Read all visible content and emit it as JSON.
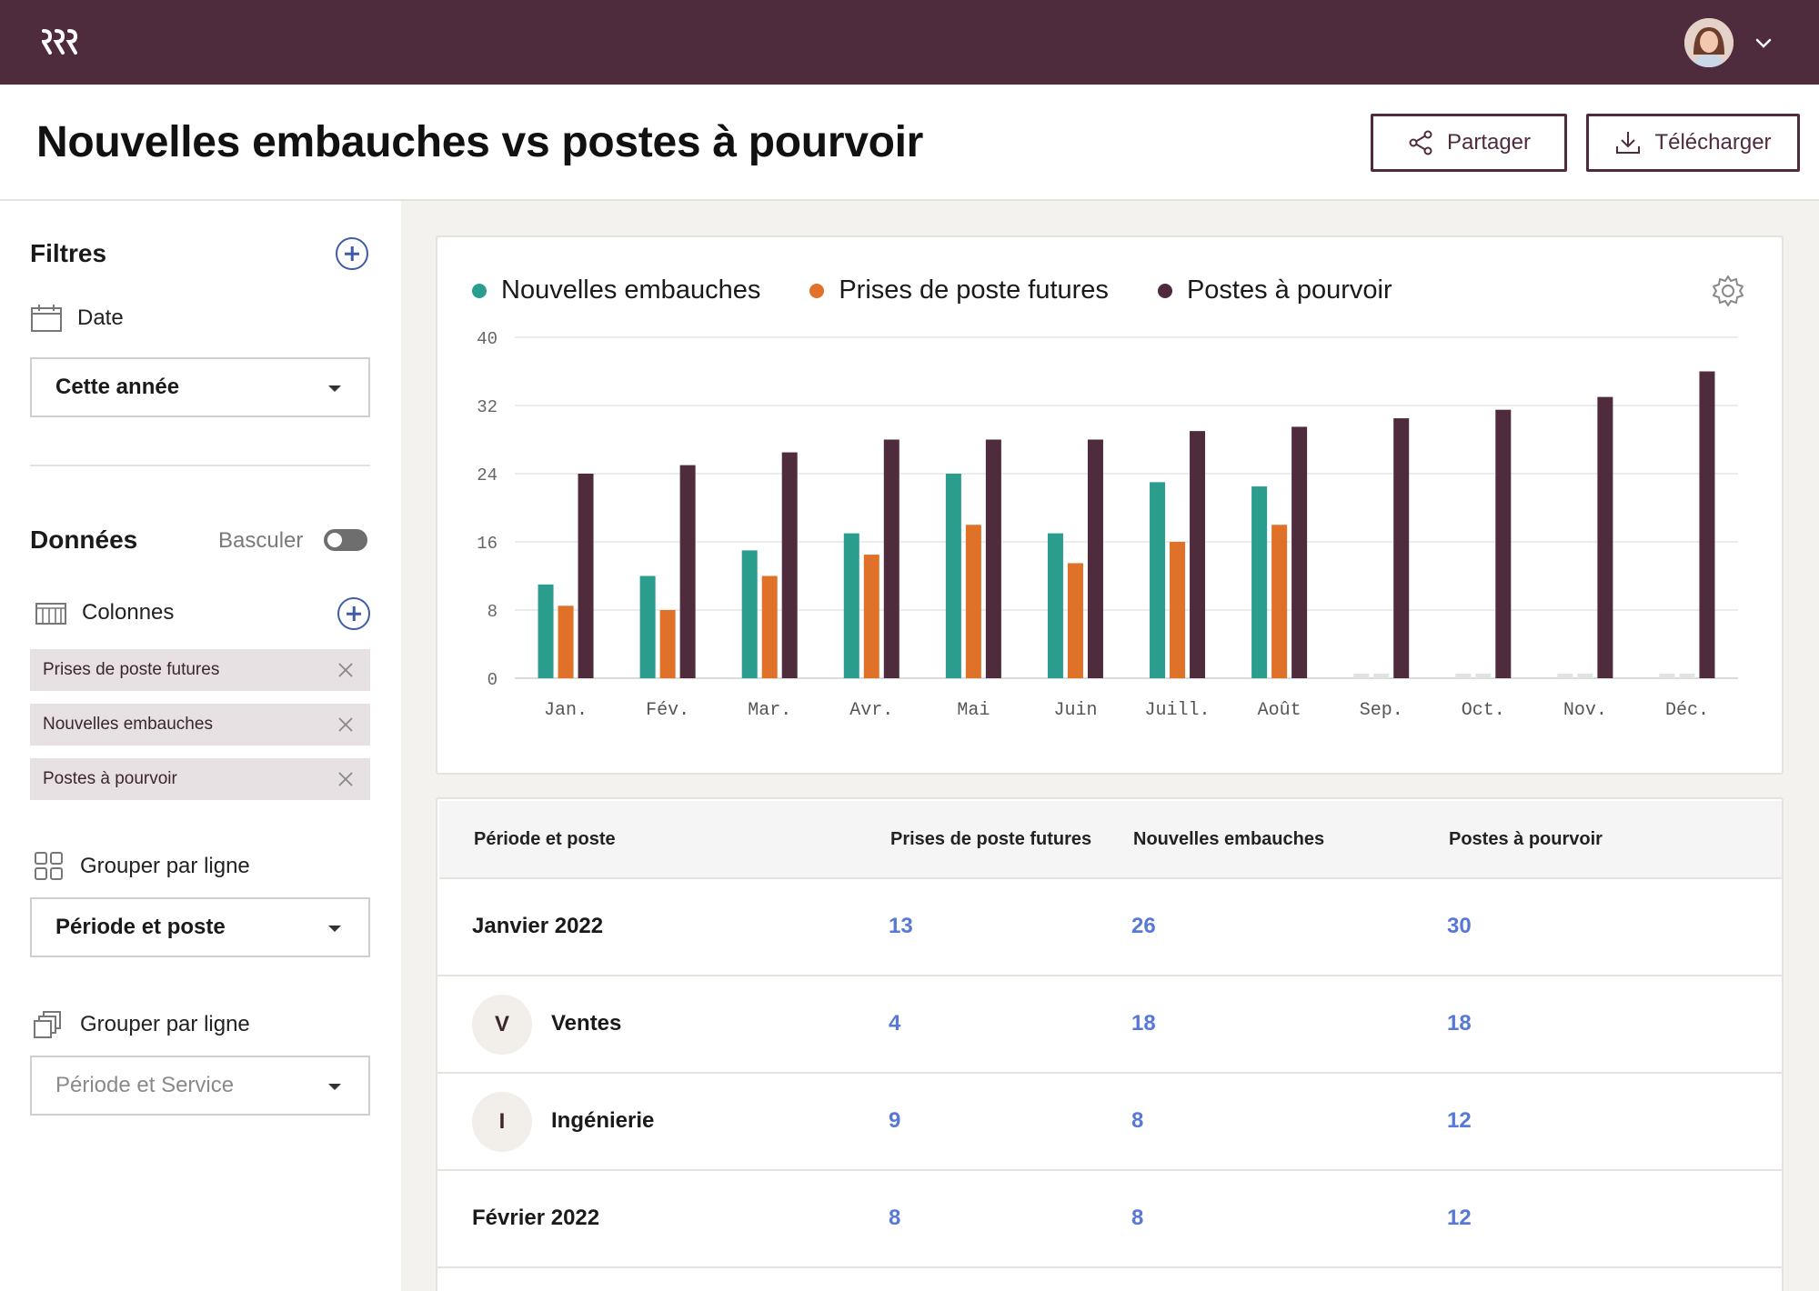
{
  "header": {
    "title": "Nouvelles embauches vs postes à pourvoir",
    "share_label": "Partager",
    "download_label": "Télécharger"
  },
  "sidebar": {
    "filters_title": "Filtres",
    "date_label": "Date",
    "date_value": "Cette année",
    "data_title": "Données",
    "toggle_label": "Basculer",
    "columns_label": "Colonnes",
    "chips": [
      "Prises de poste futures",
      "Nouvelles embauches",
      "Postes à pourvoir"
    ],
    "group_row_label": "Grouper par ligne",
    "group_row_value": "Période et poste",
    "group_row2_label": "Grouper par ligne",
    "group_row2_value": "Période et Service"
  },
  "colors": {
    "brand": "#4f2b3e",
    "teal": "#2a9d8f",
    "orange": "#e07128",
    "plum": "#4f2b3e",
    "link": "#5778d6"
  },
  "chart_data": {
    "type": "bar",
    "categories": [
      "Jan.",
      "Fév.",
      "Mar.",
      "Avr.",
      "Mai",
      "Juin",
      "Juill.",
      "Août",
      "Sep.",
      "Oct.",
      "Nov.",
      "Déc."
    ],
    "series": [
      {
        "name": "Nouvelles embauches",
        "color": "#2a9d8f",
        "values": [
          11,
          12,
          15,
          17,
          24,
          17,
          23,
          22.5,
          0,
          0,
          0,
          0
        ]
      },
      {
        "name": "Prises de poste futures",
        "color": "#e07128",
        "values": [
          8.5,
          8,
          12,
          14.5,
          18,
          13.5,
          16,
          18,
          0,
          0,
          0,
          0
        ]
      },
      {
        "name": "Postes à pourvoir",
        "color": "#4f2b3e",
        "values": [
          24,
          25,
          26.5,
          28,
          28,
          28,
          29,
          29.5,
          30.5,
          31.5,
          33,
          36
        ]
      }
    ],
    "yticks": [
      0,
      8,
      16,
      24,
      32,
      40
    ],
    "ylim": [
      0,
      40
    ],
    "grid": true,
    "legend": "top-left"
  },
  "table": {
    "headers": [
      "Période et poste",
      "Prises de poste futures",
      "Nouvelles embauches",
      "Postes à pourvoir"
    ],
    "rows": [
      {
        "name": "Janvier 2022",
        "badge": "",
        "values": [
          "13",
          "26",
          "30"
        ]
      },
      {
        "name": "Ventes",
        "badge": "V",
        "values": [
          "4",
          "18",
          "18"
        ]
      },
      {
        "name": "Ingénierie",
        "badge": "I",
        "values": [
          "9",
          "8",
          "12"
        ]
      },
      {
        "name": "Février 2022",
        "badge": "",
        "values": [
          "8",
          "8",
          "12"
        ]
      }
    ]
  }
}
